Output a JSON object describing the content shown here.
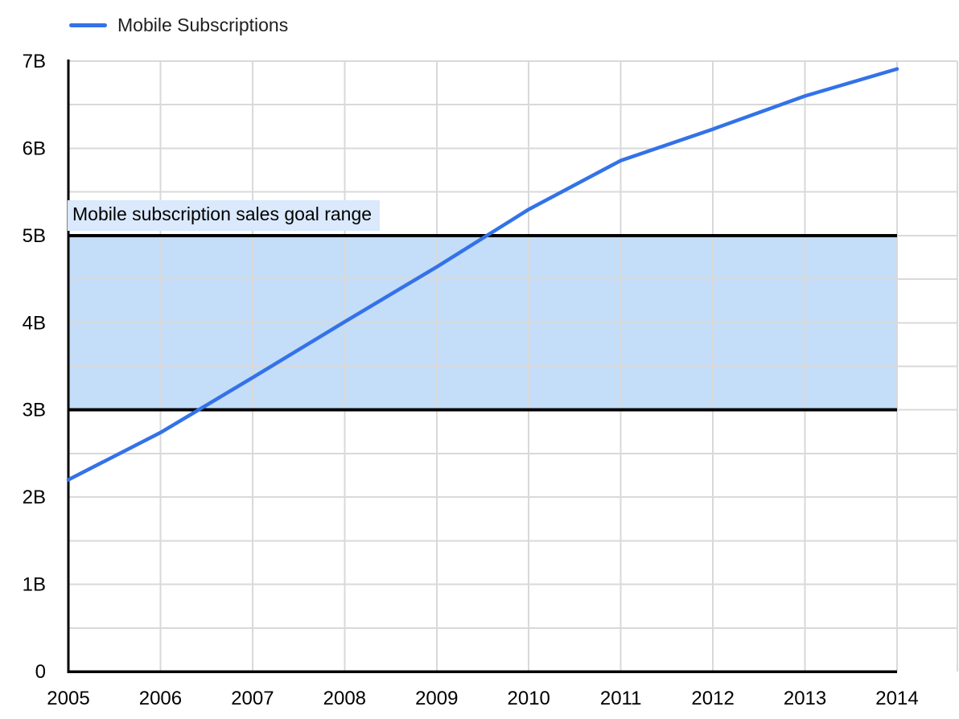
{
  "chart_data": {
    "type": "line",
    "title": "",
    "x_labels": [
      "2005",
      "2006",
      "2007",
      "2008",
      "2009",
      "2010",
      "2011",
      "2012",
      "2013",
      "2014"
    ],
    "series": [
      {
        "name": "Mobile Subscriptions",
        "color": "#3372E8",
        "values_billions": [
          2.2,
          2.74,
          3.37,
          4.01,
          4.64,
          5.3,
          5.86,
          6.22,
          6.6,
          6.91
        ]
      }
    ],
    "ylim": [
      0,
      7
    ],
    "y_ticks": [
      "0",
      "1B",
      "2B",
      "3B",
      "4B",
      "5B",
      "6B",
      "7B"
    ],
    "y_minor_step": 0.5,
    "grid": true,
    "legend_position": "top-left",
    "band": {
      "from_billions": 3,
      "to_billions": 5,
      "label": "Mobile subscription sales goal range",
      "fill": "#C4DDF8",
      "label_bg": "#DAE9FC",
      "border_color": "#000000"
    },
    "colors": {
      "background": "#FFFFFF",
      "gridline": "#D9D9D9",
      "axis": "#000000",
      "tick_text": "#000000",
      "legend_text": "#1F1F1F"
    }
  }
}
